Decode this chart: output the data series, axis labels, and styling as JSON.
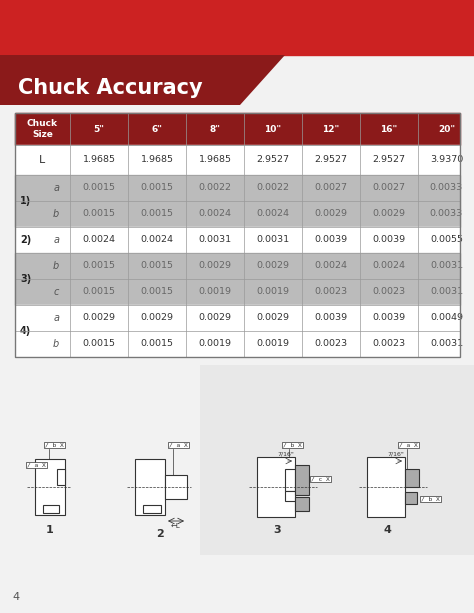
{
  "title": "Chuck Accuracy",
  "col_headers": [
    "Chuck\nSize",
    "5\"",
    "6\"",
    "8\"",
    "10\"",
    "12\"",
    "16\"",
    "20\""
  ],
  "rows": [
    {
      "group": "",
      "sub": "L",
      "values": [
        "1.9685",
        "1.9685",
        "1.9685",
        "2.9527",
        "2.9527",
        "2.9527",
        "3.9370"
      ],
      "bg": "white"
    },
    {
      "group": "1)",
      "sub": "a",
      "values": [
        "0.0015",
        "0.0015",
        "0.0022",
        "0.0022",
        "0.0027",
        "0.0027",
        "0.0033"
      ],
      "bg": "gray"
    },
    {
      "group": "",
      "sub": "b",
      "values": [
        "0.0015",
        "0.0015",
        "0.0024",
        "0.0024",
        "0.0029",
        "0.0029",
        "0.0033"
      ],
      "bg": "gray"
    },
    {
      "group": "2)",
      "sub": "a",
      "values": [
        "0.0024",
        "0.0024",
        "0.0031",
        "0.0031",
        "0.0039",
        "0.0039",
        "0.0055"
      ],
      "bg": "white"
    },
    {
      "group": "3)",
      "sub": "b",
      "values": [
        "0.0015",
        "0.0015",
        "0.0029",
        "0.0029",
        "0.0024",
        "0.0024",
        "0.0031"
      ],
      "bg": "gray"
    },
    {
      "group": "",
      "sub": "c",
      "values": [
        "0.0015",
        "0.0015",
        "0.0019",
        "0.0019",
        "0.0023",
        "0.0023",
        "0.0031"
      ],
      "bg": "gray"
    },
    {
      "group": "4)",
      "sub": "a",
      "values": [
        "0.0029",
        "0.0029",
        "0.0029",
        "0.0029",
        "0.0039",
        "0.0039",
        "0.0049"
      ],
      "bg": "white"
    },
    {
      "group": "",
      "sub": "b",
      "values": [
        "0.0015",
        "0.0015",
        "0.0019",
        "0.0019",
        "0.0023",
        "0.0023",
        "0.0031"
      ],
      "bg": "white"
    }
  ],
  "page_number": "4",
  "red_dark": "#8B1A1A",
  "red_bright": "#CC2222",
  "gray_row": "#BBBBBB",
  "white_row": "#FFFFFF",
  "page_bg": "#F2F2F2",
  "line_color": "#999999",
  "group_label_color": "#222222",
  "sub_label_color": "#555555",
  "white_val_color": "#333333",
  "gray_val_color": "#666666"
}
